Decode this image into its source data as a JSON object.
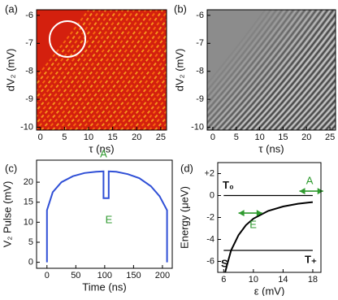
{
  "chart_data": [
    {
      "type": "heatmap",
      "panel_label": "(a)",
      "colormap": "red-yellow",
      "x_label": "τ (ns)",
      "y_label": "dV₂ (mV)",
      "xlim": [
        -0.8,
        26.2
      ],
      "ylim": [
        -10.1,
        -5.8
      ],
      "xticks": [
        0,
        5,
        10,
        15,
        20,
        25
      ],
      "yticks": [
        -6,
        -7,
        -8,
        -9,
        -10
      ]
    },
    {
      "type": "heatmap",
      "panel_label": "(b)",
      "colormap": "gray",
      "x_label": "τ (ns)",
      "y_label": "dV₂ (mV)",
      "xlim": [
        -1.2,
        26.2
      ],
      "ylim": [
        -10.1,
        -5.8
      ],
      "xticks": [
        0,
        5,
        10,
        15,
        20,
        25
      ],
      "yticks": [
        -6,
        -7,
        -8,
        -9,
        -10
      ]
    },
    {
      "type": "line",
      "panel_label": "(c)",
      "x_label": "Time (ns)",
      "y_label": "V₂ Pulse (mV)",
      "xlim": [
        -18,
        217
      ],
      "ylim": [
        -1.5,
        25.5
      ],
      "xticks": [
        0,
        50,
        100,
        150,
        200
      ],
      "yticks": [
        0,
        5,
        10,
        15,
        20
      ],
      "series": [
        {
          "color": "#2f4fd6",
          "x": [
            0,
            0,
            10,
            25,
            45,
            65,
            85,
            98,
            98,
            107,
            107,
            120,
            140,
            160,
            180,
            195,
            208,
            208
          ],
          "values": [
            0,
            13,
            17.5,
            20,
            21.5,
            22.3,
            22.6,
            22.7,
            16,
            16,
            22.7,
            22.6,
            22,
            21,
            19,
            16.5,
            13,
            0
          ]
        }
      ],
      "annotations": [
        "A",
        "E"
      ]
    },
    {
      "type": "line",
      "panel_label": "(d)",
      "x_label": "ε (mV)",
      "y_label": "Energy (μeV)",
      "xlim": [
        5.2,
        19.1
      ],
      "ylim": [
        -7,
        3
      ],
      "xticks": [
        6,
        10,
        14,
        18
      ],
      "yticks": [
        {
          "value": 2,
          "label": "+2"
        },
        0,
        -2,
        -4,
        -6
      ],
      "series": [
        {
          "name": "T₀",
          "color": "#000000",
          "x": [
            6,
            18
          ],
          "values": [
            0,
            0
          ]
        },
        {
          "name": "T₊",
          "color": "#000000",
          "x": [
            6,
            18
          ],
          "values": [
            -5,
            -5
          ]
        },
        {
          "name": "S",
          "color": "#000000",
          "x": [
            6.2,
            6.5,
            7,
            8,
            9,
            10,
            12,
            14,
            16,
            18
          ],
          "values": [
            -7,
            -6.2,
            -5,
            -3.6,
            -2.7,
            -2.1,
            -1.4,
            -1,
            -0.75,
            -0.6
          ]
        }
      ],
      "annotations": [
        "E",
        "A"
      ]
    }
  ]
}
